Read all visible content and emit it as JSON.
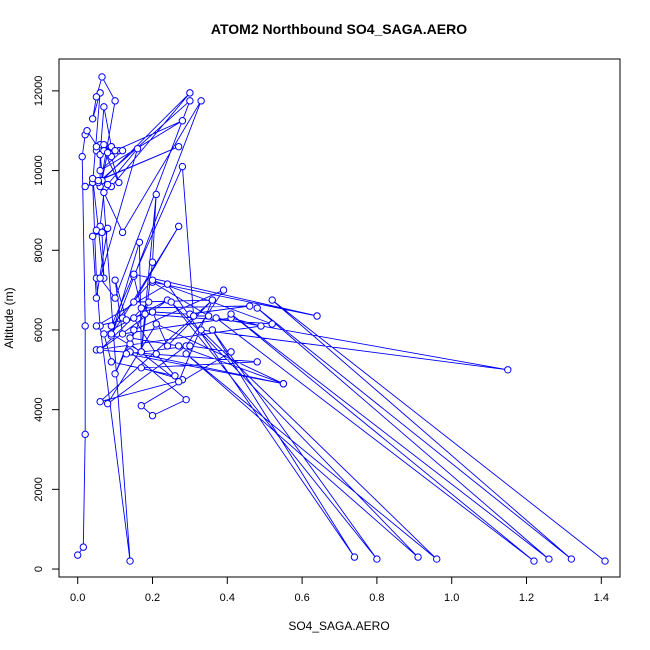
{
  "chart_data": {
    "type": "line",
    "title": "ATOM2 Northbound SO4_SAGA.AERO",
    "xlabel": "SO4_SAGA.AERO",
    "ylabel": "Altitude (m)",
    "xlim": [
      -0.05,
      1.45
    ],
    "ylim": [
      -200,
      12800
    ],
    "xticks": [
      0.0,
      0.2,
      0.4,
      0.6,
      0.8,
      1.0,
      1.2,
      1.4
    ],
    "xtick_labels": [
      "0.0",
      "0.2",
      "0.4",
      "0.6",
      "0.8",
      "1.0",
      "1.2",
      "1.4"
    ],
    "yticks": [
      0,
      2000,
      4000,
      6000,
      8000,
      10000,
      12000
    ],
    "ytick_labels": [
      "0",
      "2000",
      "4000",
      "6000",
      "8000",
      "10000",
      "12000"
    ],
    "grid": false,
    "marker": "open-circle",
    "color": "#0000ff",
    "series": [
      {
        "x": [
          0.0,
          0.015,
          0.02,
          0.02,
          0.012,
          0.02,
          0.025,
          0.06,
          0.14,
          0.06,
          0.05,
          0.04,
          0.06,
          0.04,
          0.05,
          0.065,
          0.1,
          0.06,
          0.06,
          0.09,
          0.11,
          0.05,
          0.07,
          0.06,
          0.07,
          0.09,
          0.07,
          0.11,
          0.09,
          0.05,
          0.12,
          0.06,
          0.28,
          0.1,
          0.08,
          0.065,
          0.3,
          0.09,
          0.07,
          0.06,
          0.05,
          0.08,
          0.05,
          0.04,
          0.065,
          0.07,
          0.04,
          0.08,
          0.16,
          0.06,
          0.1,
          0.3,
          0.055,
          0.02,
          0.27,
          0.055,
          0.12,
          0.33,
          0.09,
          0.165,
          0.17,
          0.2,
          0.21,
          0.17,
          0.09,
          0.12,
          0.27,
          0.15,
          0.36,
          0.24,
          0.2,
          0.3,
          0.46,
          0.17,
          0.15,
          0.28,
          0.31,
          0.35,
          0.2,
          0.64,
          0.15,
          0.09,
          0.2,
          0.52,
          0.18,
          0.13,
          0.1,
          0.12,
          0.41,
          0.49,
          0.05,
          0.48,
          0.17,
          0.28,
          0.06,
          0.36,
          0.27,
          0.14,
          0.15,
          0.39,
          0.29,
          0.08,
          0.21,
          0.55,
          0.14,
          0.29,
          0.2,
          0.17,
          0.41,
          0.3,
          0.13,
          0.55,
          0.27,
          0.14,
          0.1,
          0.19,
          0.06,
          0.24,
          0.07,
          0.09,
          0.26,
          0.21,
          0.15,
          0.05,
          0.24,
          0.74,
          0.36,
          0.8,
          0.25,
          0.91,
          0.29,
          0.96,
          0.33,
          1.15,
          0.37,
          1.22,
          0.41,
          1.26,
          0.48,
          1.32,
          0.52,
          1.41
        ],
        "y": [
          350,
          550,
          3380,
          6100,
          10350,
          10900,
          11000,
          10500,
          200,
          6100,
          7300,
          9700,
          11950,
          11300,
          11850,
          12350,
          11750,
          9600,
          10650,
          10600,
          10500,
          10500,
          10650,
          10400,
          11600,
          10600,
          10500,
          9700,
          10350,
          10600,
          10500,
          10000,
          11250,
          10500,
          10450,
          9750,
          11950,
          9600,
          9450,
          8600,
          8500,
          8550,
          6800,
          8350,
          8450,
          7300,
          9800,
          9650,
          10550,
          7300,
          6800,
          11750,
          9700,
          9600,
          10600,
          9750,
          8450,
          11750,
          5850,
          8200,
          5450,
          7700,
          9400,
          5450,
          5900,
          6300,
          8600,
          6700,
          6750,
          5600,
          6450,
          6400,
          6600,
          6550,
          7350,
          10100,
          6350,
          6350,
          7200,
          6350,
          7400,
          6100,
          7250,
          6150,
          6400,
          6250,
          7250,
          5900,
          6300,
          6100,
          5500,
          5200,
          5050,
          4750,
          4200,
          6750,
          4700,
          5650,
          6000,
          7000,
          5600,
          4150,
          6150,
          4650,
          5450,
          4250,
          3850,
          4100,
          5450,
          5600,
          5400,
          4650,
          5600,
          5800,
          4900,
          6700,
          5500,
          6750,
          5900,
          5200,
          4850,
          5400,
          6300,
          6100,
          7150,
          300,
          6000,
          250,
          6700,
          300,
          5400,
          250,
          6000,
          5000,
          6300,
          200,
          6400,
          250,
          6550,
          250,
          6750,
          200
        ]
      }
    ]
  }
}
